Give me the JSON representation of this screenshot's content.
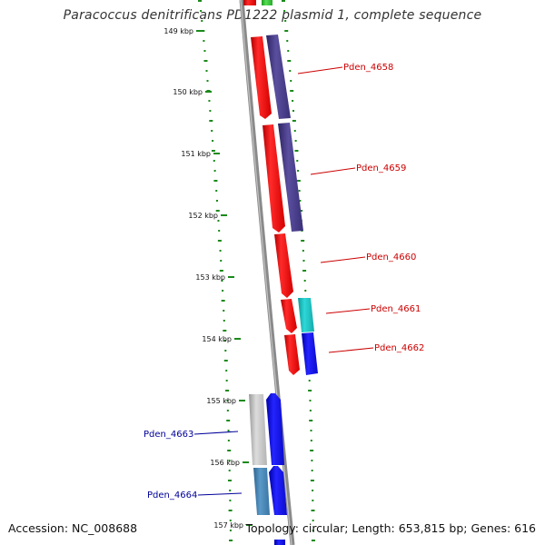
{
  "title": "Paracoccus denitrificans PD1222 plasmid 1, complete sequence",
  "footer": {
    "accession": "Accession: NC_008688",
    "topology": "Topology: circular; Length: 653,815 bp; Genes: 616"
  },
  "colors": {
    "tick_green": "#1a8a1a",
    "backbone": "#888888",
    "label_red": "#cc0000",
    "label_blue": "#000099",
    "gene_red": "#ff1a1a",
    "gene_purple": "#4b3f8c",
    "gene_teal": "#19c4c4",
    "gene_blue": "#1515ee",
    "gene_gray": "#c8c8c8",
    "gene_steel": "#4a86b6",
    "gene_green": "#3ac43a"
  },
  "ticks": [
    {
      "label": "149 kbp"
    },
    {
      "label": "150 kbp"
    },
    {
      "label": "151 kbp"
    },
    {
      "label": "152 kbp"
    },
    {
      "label": "153 kbp"
    },
    {
      "label": "154 kbp"
    },
    {
      "label": "155 kbp"
    },
    {
      "label": "156 kbp"
    },
    {
      "label": "157 kbp"
    }
  ],
  "genes": [
    {
      "name": "Pden_4658",
      "color": "red"
    },
    {
      "name": "Pden_4659",
      "color": "red"
    },
    {
      "name": "Pden_4660",
      "color": "red"
    },
    {
      "name": "Pden_4661",
      "color": "red"
    },
    {
      "name": "Pden_4662",
      "color": "red"
    },
    {
      "name": "Pden_4663",
      "color": "blue"
    },
    {
      "name": "Pden_4664",
      "color": "blue"
    }
  ]
}
